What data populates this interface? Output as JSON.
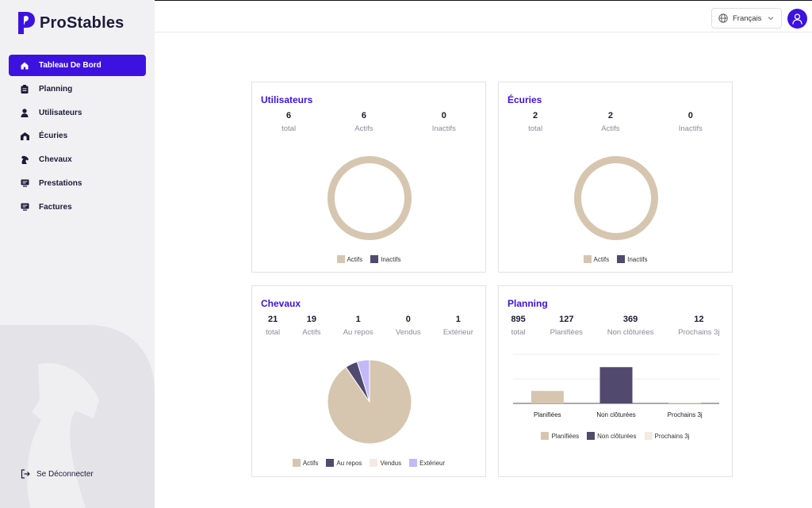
{
  "app": {
    "name": "ProStables"
  },
  "colors": {
    "accent": "#3d12e0",
    "beige": "#d6c6b0",
    "dark": "#514a6e",
    "cream": "#f3ebe3",
    "lavender": "#c3b8f8"
  },
  "sidebar": {
    "items": [
      {
        "label": "Tableau De Bord",
        "icon": "home-icon",
        "active": true
      },
      {
        "label": "Planning",
        "icon": "clipboard-icon",
        "active": false
      },
      {
        "label": "Utilisateurs",
        "icon": "user-icon",
        "active": false
      },
      {
        "label": "Écuries",
        "icon": "stable-icon",
        "active": false
      },
      {
        "label": "Chevaux",
        "icon": "horse-icon",
        "active": false
      },
      {
        "label": "Prestations",
        "icon": "service-icon",
        "active": false
      },
      {
        "label": "Factures",
        "icon": "invoice-icon",
        "active": false
      }
    ],
    "logout": "Se Déconnecter"
  },
  "header": {
    "language": "Français"
  },
  "cards": {
    "users": {
      "title": "Utilisateurs",
      "stats": [
        {
          "value": "6",
          "label": "total"
        },
        {
          "value": "6",
          "label": "Actifs"
        },
        {
          "value": "0",
          "label": "Inactifs"
        }
      ],
      "legend": [
        "Actifs",
        "Inactifs"
      ]
    },
    "stables": {
      "title": "Écuries",
      "stats": [
        {
          "value": "2",
          "label": "total"
        },
        {
          "value": "2",
          "label": "Actifs"
        },
        {
          "value": "0",
          "label": "Inactifs"
        }
      ],
      "legend": [
        "Actifs",
        "Inactifs"
      ]
    },
    "horses": {
      "title": "Chevaux",
      "stats": [
        {
          "value": "21",
          "label": "total"
        },
        {
          "value": "19",
          "label": "Actifs"
        },
        {
          "value": "1",
          "label": "Au repos"
        },
        {
          "value": "0",
          "label": "Vendus"
        },
        {
          "value": "1",
          "label": "Extérieur"
        }
      ],
      "legend": [
        "Actifs",
        "Au repos",
        "Vendus",
        "Extérieur"
      ]
    },
    "planning": {
      "title": "Planning",
      "stats": [
        {
          "value": "895",
          "label": "total"
        },
        {
          "value": "127",
          "label": "Planifiées"
        },
        {
          "value": "369",
          "label": "Non clôturées"
        },
        {
          "value": "12",
          "label": "Prochains 3j"
        }
      ],
      "legend": [
        "Planifiées",
        "Non clôturées",
        "Prochains 3j"
      ]
    }
  },
  "chart_data": [
    {
      "type": "pie",
      "donut": true,
      "labels": [
        "Actifs",
        "Inactifs"
      ],
      "values": [
        6,
        0
      ],
      "colors": [
        "#d6c6b0",
        "#514a6e"
      ]
    },
    {
      "type": "pie",
      "donut": true,
      "labels": [
        "Actifs",
        "Inactifs"
      ],
      "values": [
        2,
        0
      ],
      "colors": [
        "#d6c6b0",
        "#514a6e"
      ]
    },
    {
      "type": "pie",
      "labels": [
        "Actifs",
        "Au repos",
        "Vendus",
        "Extérieur"
      ],
      "values": [
        19,
        1,
        0,
        1
      ],
      "colors": [
        "#d6c6b0",
        "#514a6e",
        "#f3ebe3",
        "#c3b8f8"
      ]
    },
    {
      "type": "bar",
      "categories": [
        "Planifiées",
        "Non clôturées",
        "Prochains 3j"
      ],
      "values": [
        127,
        369,
        12
      ],
      "colors": [
        "#d6c6b0",
        "#514a6e",
        "#f3ebe3"
      ],
      "ylim": [
        0,
        500
      ],
      "grid": true,
      "legend": "bottom"
    }
  ]
}
